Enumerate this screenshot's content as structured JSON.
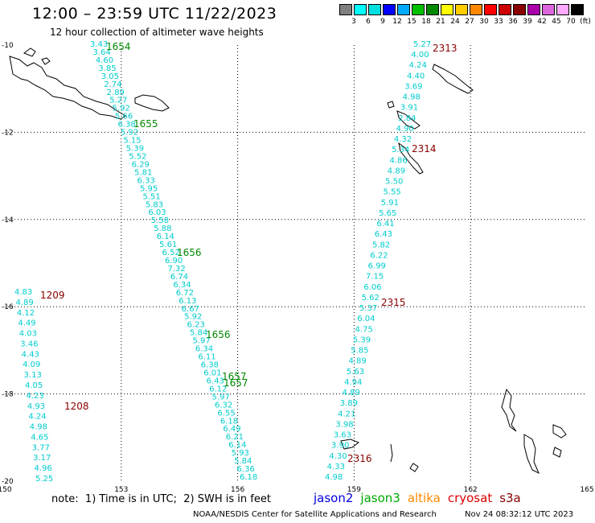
{
  "header": {
    "title": "12:00 – 23:59 UTC 11/22/2023",
    "subtitle": "12 hour collection of altimeter wave heights"
  },
  "legend": {
    "unit": "(ft)",
    "levels": [
      "3",
      "6",
      "9",
      "12",
      "15",
      "18",
      "21",
      "24",
      "27",
      "30",
      "33",
      "36",
      "39",
      "42",
      "45",
      "70"
    ],
    "colors": [
      "#808080",
      "#00ffff",
      "#00e0e0",
      "#0000ff",
      "#00aaff",
      "#00c000",
      "#008800",
      "#ffff00",
      "#ffcc00",
      "#ff8800",
      "#ff0000",
      "#cc0000",
      "#880000",
      "#aa00aa",
      "#dd66dd",
      "#ffaaff",
      "#000000"
    ]
  },
  "axes": {
    "lon_ticks": [
      "150",
      "153",
      "156",
      "159",
      "162",
      "165"
    ],
    "lat_ticks": [
      "-10",
      "-12",
      "-14",
      "-16",
      "-18",
      "-20"
    ]
  },
  "tracks": [
    {
      "color": "#00cccc",
      "values": [
        "3.43",
        "3.64",
        "4.60",
        "3.85",
        "3.05",
        "2.74",
        "2.89",
        "5.27",
        "5.92",
        "5.66",
        "6.38",
        "5.92",
        "5.15",
        "5.39",
        "5.52",
        "6.29",
        "5.81",
        "6.33",
        "5.95",
        "5.51",
        "5.83",
        "6.03",
        "5.58",
        "5.88",
        "6.14",
        "5.61",
        "6.52",
        "6.90",
        "7.32",
        "6.74",
        "6.34",
        "6.72",
        "6.13",
        "6.67",
        "5.92",
        "6.23",
        "5.84",
        "5.97",
        "6.34",
        "6.11",
        "6.38",
        "6.01",
        "6.43",
        "6.12",
        "5.97",
        "6.32",
        "6.55",
        "6.18",
        "6.49",
        "6.21",
        "6.14",
        "5.93",
        "5.84",
        "6.36",
        "6.18"
      ]
    },
    {
      "color": "#00cccc",
      "values": [
        "4.83",
        "4.89",
        "4.12",
        "4.49",
        "4.03",
        "3.46",
        "4.43",
        "4.09",
        "3.13",
        "4.05",
        "4.23",
        "4.93",
        "4.24",
        "4.98",
        "4.65",
        "3.77",
        "3.17",
        "4.96",
        "5.25"
      ]
    },
    {
      "color": "#00cccc",
      "values": [
        "5.27",
        "4.00",
        "4.24",
        "4.40",
        "3.69",
        "4.98",
        "3.91",
        "2.84",
        "4.90",
        "4.32",
        "5.34",
        "4.86",
        "4.89",
        "5.50",
        "5.55",
        "5.91",
        "5.65",
        "6.41",
        "6.43",
        "5.82",
        "6.22",
        "6.99",
        "7.15",
        "6.06",
        "5.62",
        "5.37",
        "6.04",
        "4.75",
        "5.39",
        "5.85",
        "4.89",
        "5.63",
        "4.94",
        "4.89",
        "3.89",
        "4.21",
        "3.98",
        "3.63",
        "3.90",
        "4.30",
        "4.33",
        "4.98"
      ]
    }
  ],
  "pass_labels": [
    {
      "text": "1654",
      "color": "#008800"
    },
    {
      "text": "1655",
      "color": "#008800"
    },
    {
      "text": "1656",
      "color": "#008800"
    },
    {
      "text": "1656",
      "color": "#008800"
    },
    {
      "text": "1657",
      "color": "#008800"
    },
    {
      "text": "1657",
      "color": "#008800"
    },
    {
      "text": "1209",
      "color": "#880000"
    },
    {
      "text": "1208",
      "color": "#880000"
    },
    {
      "text": "2313",
      "color": "#880000"
    },
    {
      "text": "2314",
      "color": "#880000"
    },
    {
      "text": "2315",
      "color": "#880000"
    },
    {
      "text": "2316",
      "color": "#880000"
    }
  ],
  "note": "note:  1) Time is in UTC;  2) SWH is in feet",
  "satellites": [
    {
      "name": "jason2",
      "color": "#0000dd"
    },
    {
      "name": "jason3",
      "color": "#00aa00"
    },
    {
      "name": "altika",
      "color": "#ff8800"
    },
    {
      "name": "cryosat",
      "color": "#dd0000"
    },
    {
      "name": "s3a",
      "color": "#880000"
    }
  ],
  "footer": {
    "credit": "NOAA/NESDIS Center for Satellite Applications and Research",
    "timestamp": "Nov 24 08:32:12 UTC 2023"
  }
}
